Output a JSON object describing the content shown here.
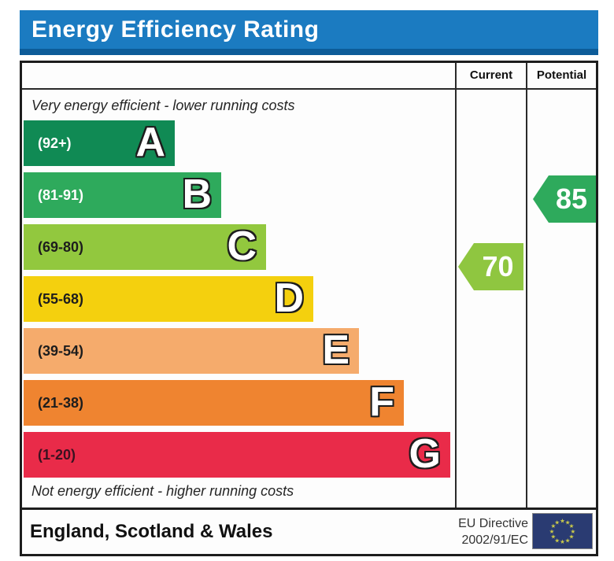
{
  "title": "Energy Efficiency Rating",
  "columns": {
    "current": "Current",
    "potential": "Potential"
  },
  "notes": {
    "top": "Very energy efficient - lower running costs",
    "bottom": "Not energy efficient - higher running costs"
  },
  "chart_data": {
    "type": "bar",
    "title": "Energy Efficiency Rating",
    "orientation": "horizontal",
    "bands": [
      {
        "letter": "A",
        "range": "(92+)",
        "min": 92,
        "max": 100,
        "color": "#108a54",
        "label_color": "#ffffff"
      },
      {
        "letter": "B",
        "range": "(81-91)",
        "min": 81,
        "max": 91,
        "color": "#2eaa5c",
        "label_color": "#ffffff"
      },
      {
        "letter": "C",
        "range": "(69-80)",
        "min": 69,
        "max": 80,
        "color": "#92c83e",
        "label_color": "#1d1d1d"
      },
      {
        "letter": "D",
        "range": "(55-68)",
        "min": 55,
        "max": 68,
        "color": "#f4d00e",
        "label_color": "#1d1d1d"
      },
      {
        "letter": "E",
        "range": "(39-54)",
        "min": 39,
        "max": 54,
        "color": "#f5ab6c",
        "label_color": "#1d1d1d"
      },
      {
        "letter": "F",
        "range": "(21-38)",
        "min": 21,
        "max": 38,
        "color": "#ef8430",
        "label_color": "#1d1d1d"
      },
      {
        "letter": "G",
        "range": "(1-20)",
        "min": 1,
        "max": 20,
        "color": "#e92b49",
        "label_color": "#3a1220"
      }
    ],
    "current": {
      "value": 70,
      "band": "C",
      "color": "#8fc640"
    },
    "potential": {
      "value": 85,
      "band": "B",
      "color": "#2eaa5c"
    }
  },
  "footer": {
    "region": "England, Scotland & Wales",
    "directive": [
      "EU Directive",
      "2002/91/EC"
    ],
    "eu_flag": {
      "background": "#2a3b72",
      "star_color": "#c9c94a",
      "stars": 12
    }
  },
  "colors": {
    "title_bg": "#1b7bc1",
    "title_shadow": "#0d5c99",
    "border": "#1d1d1d"
  }
}
